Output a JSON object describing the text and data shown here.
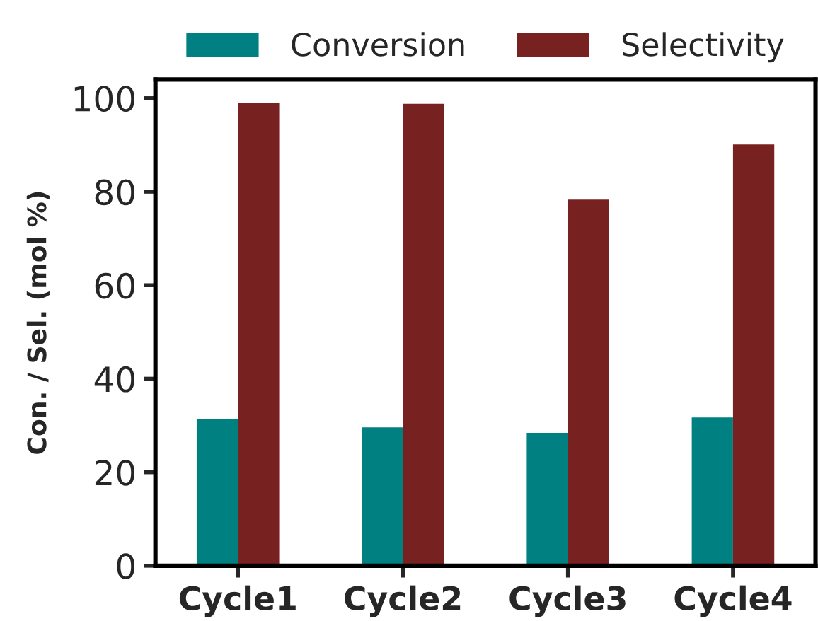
{
  "chart_data": {
    "type": "bar",
    "ylabel": "Con. / Sel. (mol %)",
    "categories": [
      "Cycle1",
      "Cycle2",
      "Cycle3",
      "Cycle4"
    ],
    "series": [
      {
        "name": "Conversion",
        "color": "#008080",
        "values": [
          31.4,
          29.6,
          28.4,
          31.7
        ]
      },
      {
        "name": "Selectivity",
        "color": "#782121",
        "values": [
          98.9,
          98.8,
          78.3,
          90.1
        ]
      }
    ],
    "ylim": [
      0,
      104
    ],
    "yticks": [
      0,
      20,
      40,
      60,
      80,
      100
    ],
    "grid": false,
    "legend": "top"
  }
}
